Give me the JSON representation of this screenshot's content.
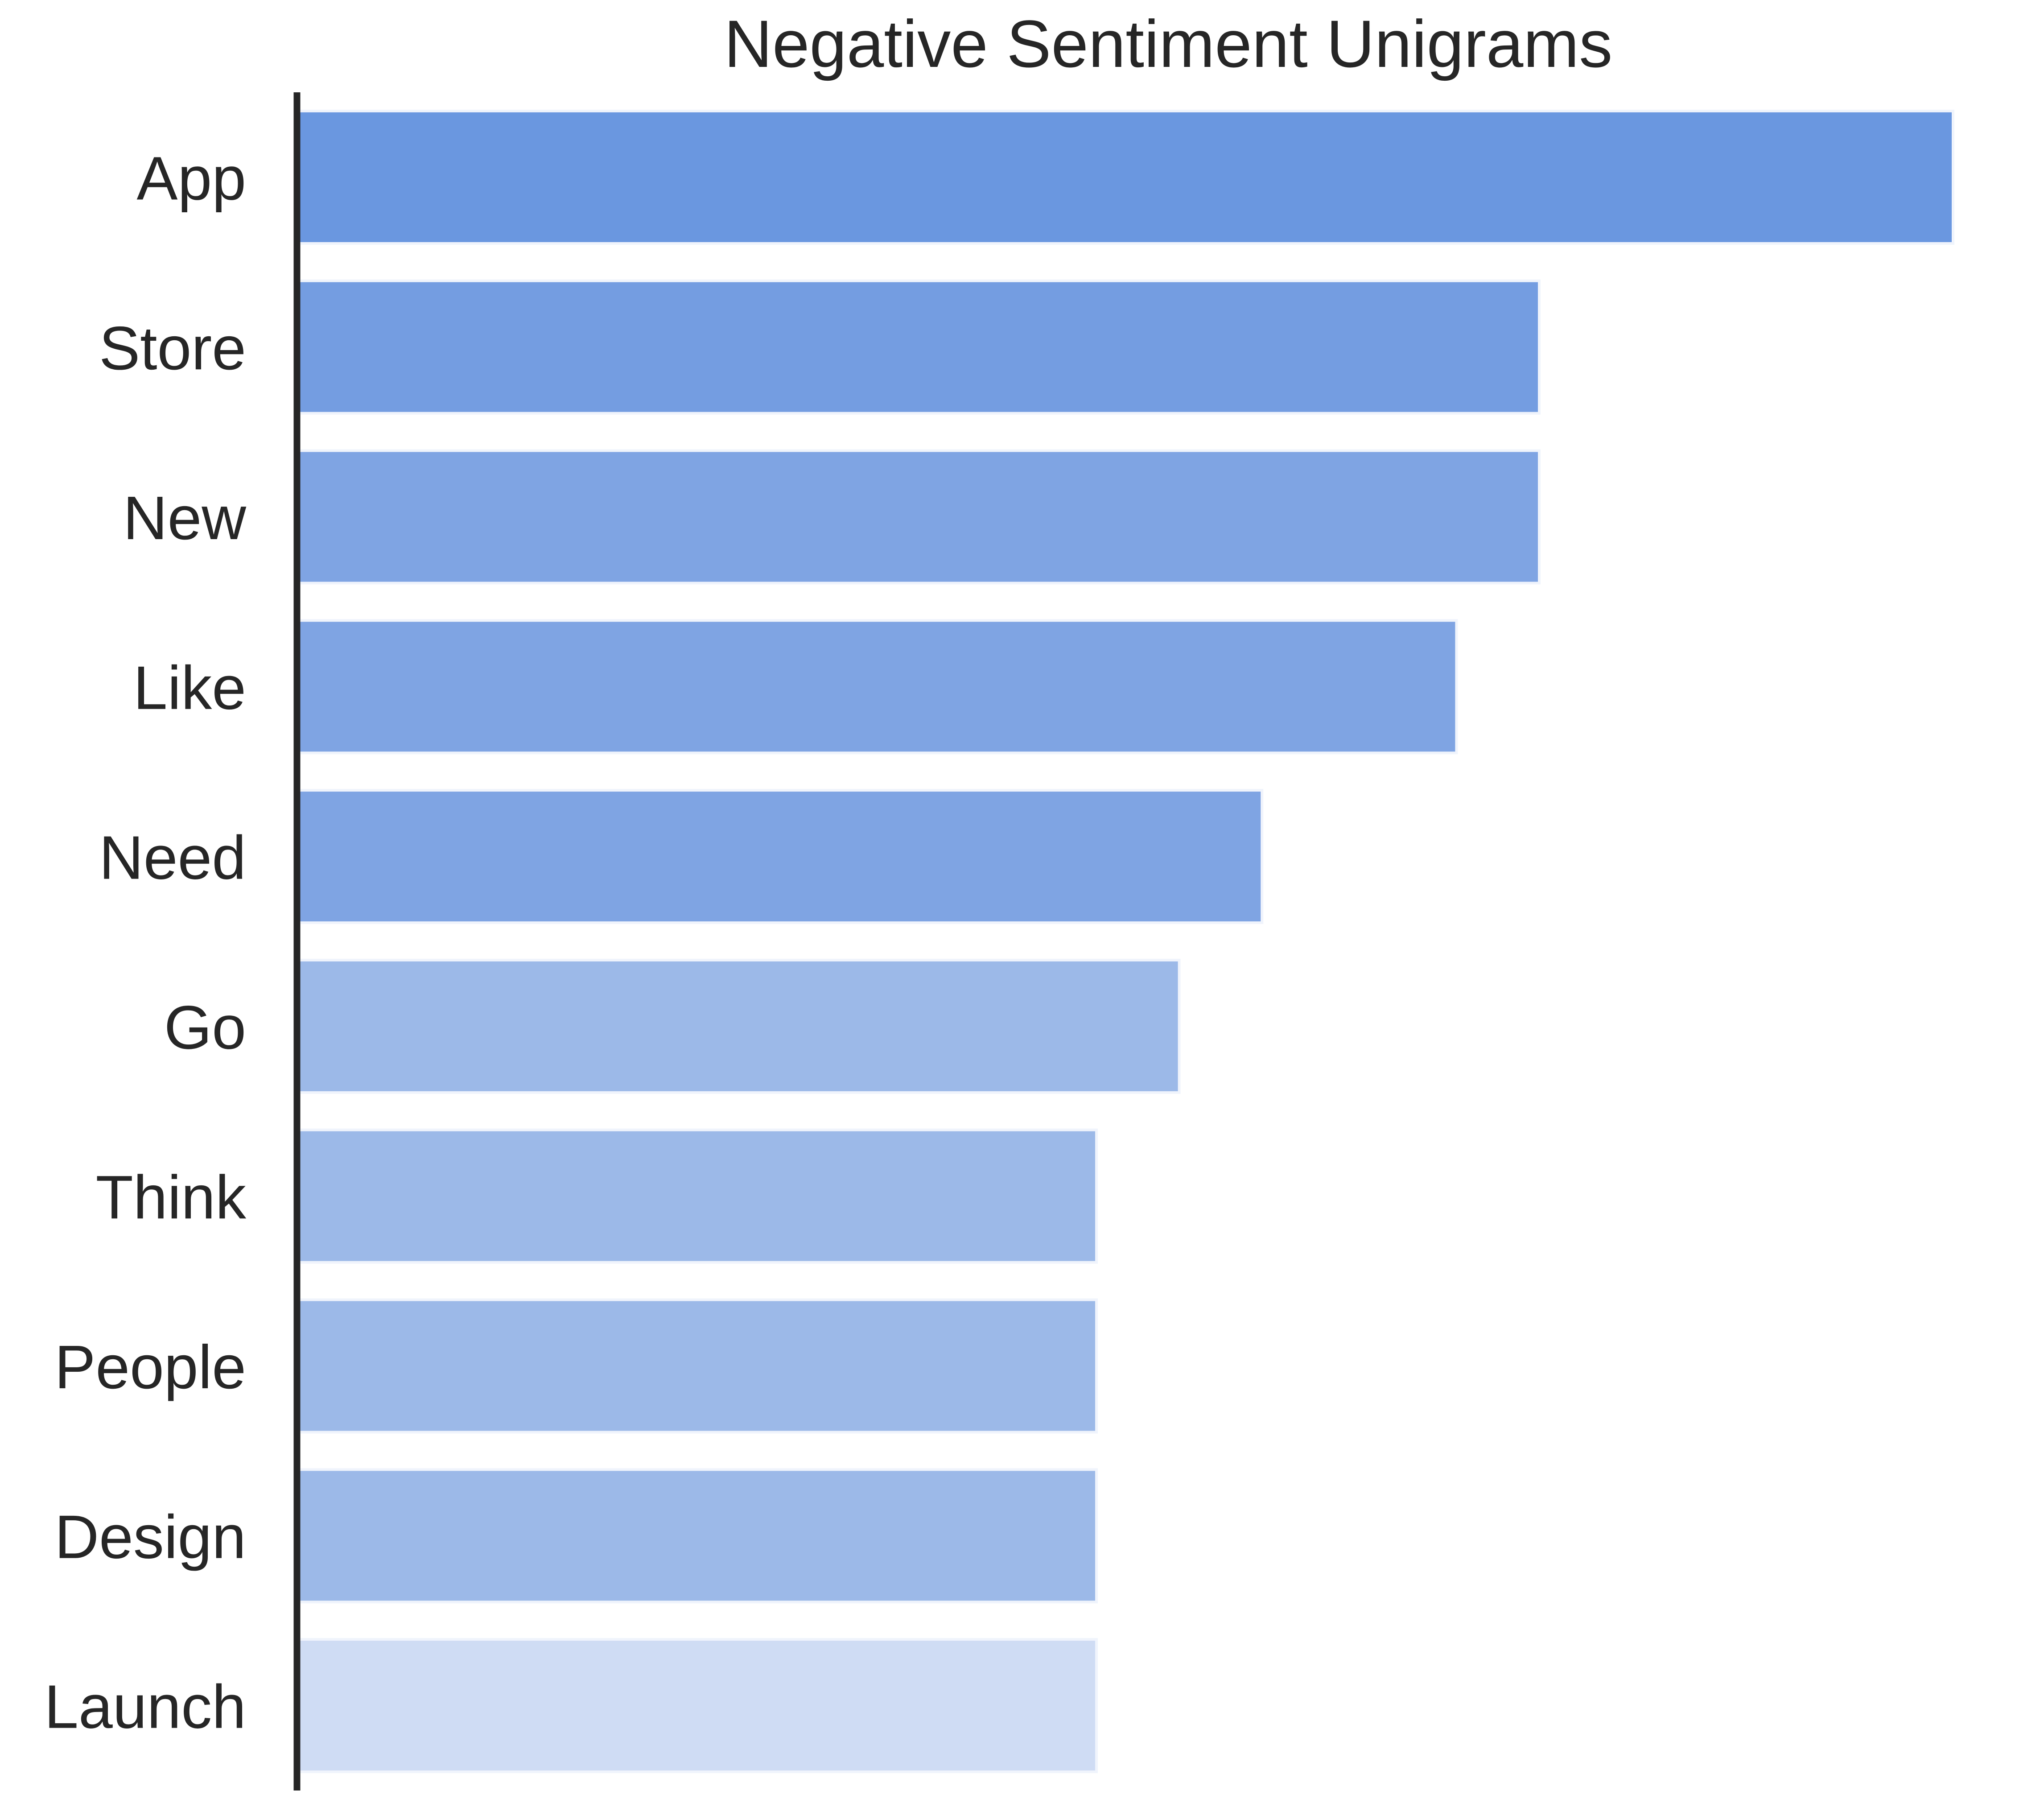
{
  "chart_data": {
    "type": "bar",
    "orientation": "horizontal",
    "title": "Negative Sentiment Unigrams",
    "xlabel": "",
    "ylabel": "",
    "categories": [
      "App",
      "Store",
      "New",
      "Like",
      "Need",
      "Go",
      "Think",
      "People",
      "Design",
      "Launch"
    ],
    "values": [
      20,
      15,
      15,
      14,
      11.65,
      10.65,
      9.65,
      9.65,
      9.65,
      9.65
    ],
    "colors": [
      "#6a97e0",
      "#749de1",
      "#7fa4e3",
      "#7fa4e3",
      "#7fa4e3",
      "#9cb9e8",
      "#9cb9e8",
      "#9cb9e8",
      "#9cb9e8",
      "#cfdcf4"
    ],
    "xlim": [
      0,
      20
    ],
    "grid": false,
    "x_ticks_visible": false,
    "spines": {
      "left": true,
      "bottom": false,
      "top": false,
      "right": false
    }
  }
}
